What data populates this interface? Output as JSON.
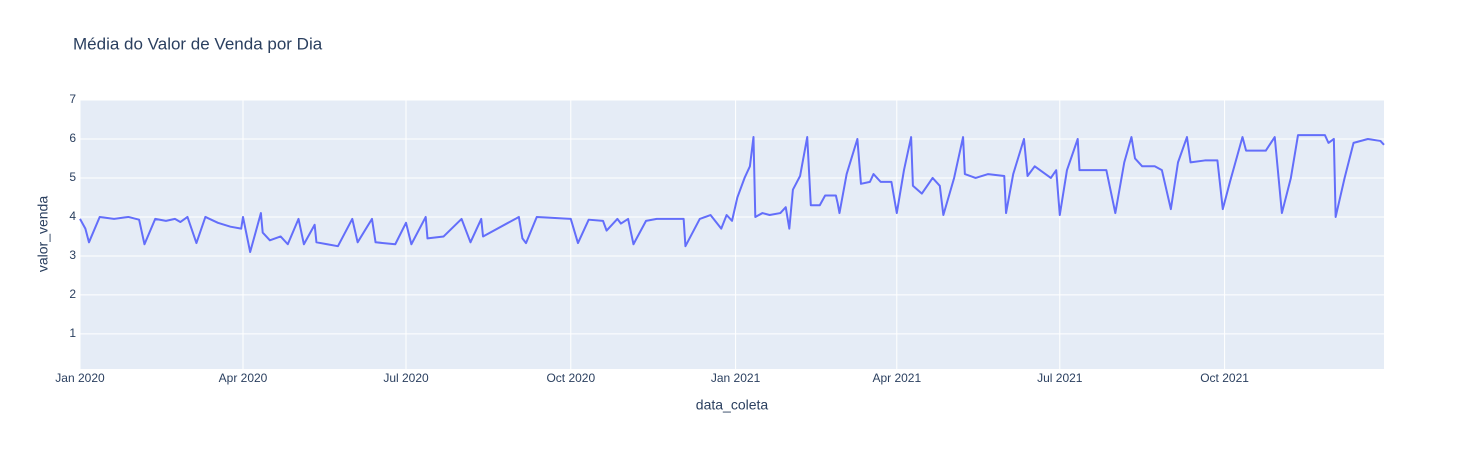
{
  "chart_data": {
    "type": "line",
    "title": "Média do Valor de Venda por Dia",
    "x_label": "data_coleta",
    "y_label": "valor_venda",
    "color": "#636efa",
    "grid": true,
    "xlim": [
      "2020-01-01",
      "2021-12-29"
    ],
    "ylim": [
      0.1,
      7
    ],
    "yticks": [
      1,
      2,
      3,
      4,
      5,
      6,
      7
    ],
    "xticks": [
      {
        "value": "2020-01-01",
        "label": "Jan 2020"
      },
      {
        "value": "2020-04-01",
        "label": "Apr 2020"
      },
      {
        "value": "2020-07-01",
        "label": "Jul 2020"
      },
      {
        "value": "2020-10-01",
        "label": "Oct 2020"
      },
      {
        "value": "2021-01-01",
        "label": "Jan 2021"
      },
      {
        "value": "2021-04-01",
        "label": "Apr 2021"
      },
      {
        "value": "2021-07-01",
        "label": "Jul 2021"
      },
      {
        "value": "2021-10-01",
        "label": "Oct 2021"
      }
    ],
    "x": [
      "2020-01-01",
      "2020-01-04",
      "2020-01-06",
      "2020-01-12",
      "2020-01-20",
      "2020-01-28",
      "2020-02-03",
      "2020-02-06",
      "2020-02-12",
      "2020-02-18",
      "2020-02-23",
      "2020-02-26",
      "2020-03-01",
      "2020-03-06",
      "2020-03-11",
      "2020-03-18",
      "2020-03-25",
      "2020-03-31",
      "2020-04-01",
      "2020-04-05",
      "2020-04-11",
      "2020-04-12",
      "2020-04-16",
      "2020-04-22",
      "2020-04-26",
      "2020-05-02",
      "2020-05-05",
      "2020-05-11",
      "2020-05-12",
      "2020-05-18",
      "2020-05-24",
      "2020-06-01",
      "2020-06-04",
      "2020-06-12",
      "2020-06-14",
      "2020-06-25",
      "2020-07-01",
      "2020-07-04",
      "2020-07-12",
      "2020-07-13",
      "2020-07-22",
      "2020-08-01",
      "2020-08-06",
      "2020-08-12",
      "2020-08-13",
      "2020-09-02",
      "2020-09-04",
      "2020-09-06",
      "2020-09-12",
      "2020-10-01",
      "2020-10-05",
      "2020-10-11",
      "2020-10-19",
      "2020-10-21",
      "2020-10-27",
      "2020-10-29",
      "2020-11-02",
      "2020-11-05",
      "2020-11-12",
      "2020-11-18",
      "2020-11-24",
      "2020-12-03",
      "2020-12-04",
      "2020-12-12",
      "2020-12-18",
      "2020-12-24",
      "2020-12-27",
      "2020-12-30",
      "2021-01-02",
      "2021-01-06",
      "2021-01-09",
      "2021-01-11",
      "2021-01-12",
      "2021-01-16",
      "2021-01-20",
      "2021-01-26",
      "2021-01-29",
      "2021-01-31",
      "2021-02-02",
      "2021-02-06",
      "2021-02-10",
      "2021-02-12",
      "2021-02-17",
      "2021-02-20",
      "2021-02-26",
      "2021-02-27",
      "2021-02-28",
      "2021-03-04",
      "2021-03-10",
      "2021-03-12",
      "2021-03-17",
      "2021-03-19",
      "2021-03-23",
      "2021-03-29",
      "2021-04-01",
      "2021-04-05",
      "2021-04-09",
      "2021-04-10",
      "2021-04-15",
      "2021-04-21",
      "2021-04-25",
      "2021-04-27",
      "2021-05-03",
      "2021-05-08",
      "2021-05-09",
      "2021-05-15",
      "2021-05-22",
      "2021-05-31",
      "2021-06-01",
      "2021-06-05",
      "2021-06-11",
      "2021-06-13",
      "2021-06-17",
      "2021-06-23",
      "2021-06-26",
      "2021-06-29",
      "2021-07-01",
      "2021-07-05",
      "2021-07-11",
      "2021-07-12",
      "2021-07-18",
      "2021-07-27",
      "2021-08-01",
      "2021-08-06",
      "2021-08-10",
      "2021-08-12",
      "2021-08-16",
      "2021-08-23",
      "2021-08-27",
      "2021-09-01",
      "2021-09-05",
      "2021-09-10",
      "2021-09-12",
      "2021-09-20",
      "2021-09-27",
      "2021-09-30",
      "2021-10-04",
      "2021-10-11",
      "2021-10-13",
      "2021-10-24",
      "2021-10-29",
      "2021-11-02",
      "2021-11-07",
      "2021-11-11",
      "2021-11-26",
      "2021-11-28",
      "2021-12-01",
      "2021-12-02",
      "2021-12-07",
      "2021-12-12",
      "2021-12-20",
      "2021-12-27",
      "2021-12-29"
    ],
    "values": [
      3.95,
      3.7,
      3.35,
      4.0,
      3.95,
      4.0,
      3.93,
      3.3,
      3.95,
      3.9,
      3.95,
      3.87,
      4.0,
      3.33,
      4.0,
      3.85,
      3.75,
      3.7,
      4.0,
      3.1,
      4.1,
      3.6,
      3.4,
      3.5,
      3.3,
      3.95,
      3.3,
      3.8,
      3.35,
      3.3,
      3.25,
      3.95,
      3.35,
      3.95,
      3.35,
      3.3,
      3.85,
      3.3,
      4.0,
      3.45,
      3.5,
      3.95,
      3.35,
      3.95,
      3.5,
      4.0,
      3.45,
      3.33,
      4.0,
      3.95,
      3.33,
      3.93,
      3.9,
      3.65,
      3.95,
      3.83,
      3.95,
      3.3,
      3.9,
      3.95,
      3.95,
      3.95,
      3.25,
      3.95,
      4.05,
      3.7,
      4.05,
      3.9,
      4.5,
      5.0,
      5.3,
      6.05,
      4.0,
      4.1,
      4.05,
      4.1,
      4.25,
      3.7,
      4.7,
      5.05,
      6.05,
      4.3,
      4.3,
      4.55,
      4.55,
      4.35,
      4.1,
      5.1,
      6.0,
      4.85,
      4.9,
      5.1,
      4.9,
      4.9,
      4.1,
      5.2,
      6.05,
      4.8,
      4.6,
      5.0,
      4.8,
      4.05,
      5.0,
      6.05,
      5.1,
      5.0,
      5.1,
      5.05,
      4.1,
      5.1,
      6.0,
      5.05,
      5.3,
      5.1,
      5.0,
      5.2,
      4.05,
      5.2,
      6.0,
      5.2,
      5.2,
      5.2,
      4.1,
      5.4,
      6.05,
      5.5,
      5.3,
      5.3,
      5.2,
      4.2,
      5.4,
      6.05,
      5.4,
      5.45,
      5.45,
      4.2,
      4.9,
      6.05,
      5.7,
      5.7,
      6.05,
      4.1,
      5.0,
      6.1,
      6.1,
      5.9,
      6.0,
      4.0,
      5.0,
      5.9,
      6.0,
      5.95,
      5.85
    ]
  }
}
